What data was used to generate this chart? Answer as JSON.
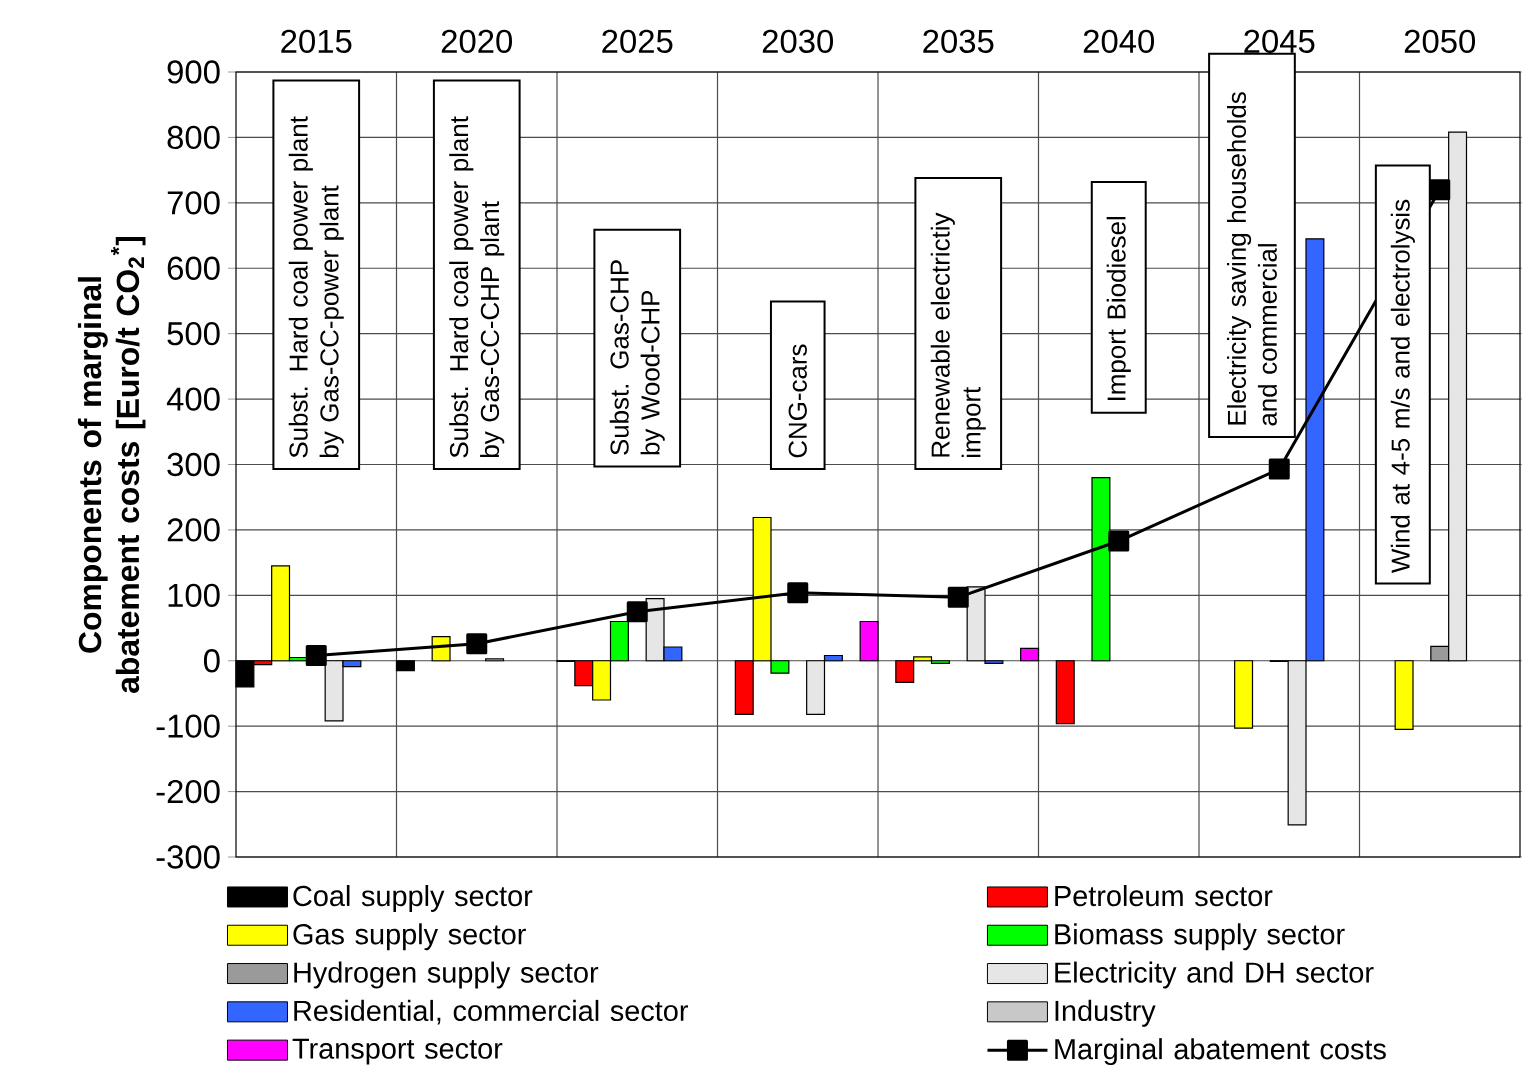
{
  "chart_data": {
    "type": "bar",
    "ylabel": "Components of marginal abatement costs [Euro/t CO$_{2}$$^{*}$]",
    "categories": [
      "2015",
      "2020",
      "2025",
      "2030",
      "2035",
      "2040",
      "2045",
      "2050"
    ],
    "series": [
      {
        "name": "Coal supply sector",
        "color": "#000000",
        "values": [
          -40,
          -15,
          -1,
          null,
          null,
          null,
          null,
          null
        ]
      },
      {
        "name": "Petroleum sector",
        "color": "#ff0000",
        "values": [
          -6,
          null,
          -38,
          -82,
          -33,
          -96,
          null,
          null
        ]
      },
      {
        "name": "Gas supply sector",
        "color": "#ffff00",
        "values": [
          145,
          37,
          -60,
          219,
          6,
          null,
          -103,
          -105
        ]
      },
      {
        "name": "Biomass supply sector",
        "color": "#00ff00",
        "values": [
          5,
          null,
          60,
          -19,
          -4,
          280,
          null,
          null
        ]
      },
      {
        "name": "Hydrogen supply sector",
        "color": "#9a9a9a",
        "values": [
          null,
          null,
          null,
          null,
          null,
          null,
          -1,
          22
        ]
      },
      {
        "name": "Electricity and DH sector",
        "color": "#e6e6e6",
        "values": [
          -92,
          3,
          95,
          -82,
          113,
          null,
          -251,
          808
        ]
      },
      {
        "name": "Residential, commercial sector",
        "color": "#3366ff",
        "values": [
          -9,
          null,
          21,
          8,
          -4,
          null,
          645,
          null
        ]
      },
      {
        "name": "Industry",
        "color": "#c8c8c8",
        "values": [
          null,
          null,
          null,
          null,
          null,
          null,
          null,
          null
        ]
      },
      {
        "name": "Transport sector",
        "color": "#ff00ff",
        "values": [
          null,
          null,
          null,
          60,
          19,
          null,
          null,
          null
        ]
      },
      {
        "name": "Marginal abatement costs",
        "type": "line",
        "color": "#000000",
        "values": [
          8,
          26,
          75,
          104,
          97,
          183,
          293,
          720
        ]
      }
    ],
    "ylim": [
      -300,
      900
    ],
    "yticks": [
      -300,
      -200,
      -100,
      0,
      100,
      200,
      300,
      400,
      500,
      600,
      700,
      800,
      900
    ],
    "grid": true,
    "legend": "bottom",
    "marker": "square",
    "annotations": [
      "Subst. Hard coal power plant by Gas-CC-power plant",
      "Subst. Hard coal power plant by Gas-CC-CHP plant",
      "Subst. Gas-CHP by Wood-CHP",
      "CNG-cars",
      "Renewable electrictiy import",
      "Import Biodiesel",
      "Electricity saving households and commercial",
      "Wind at 4-5 m/s and electrolysis"
    ]
  }
}
